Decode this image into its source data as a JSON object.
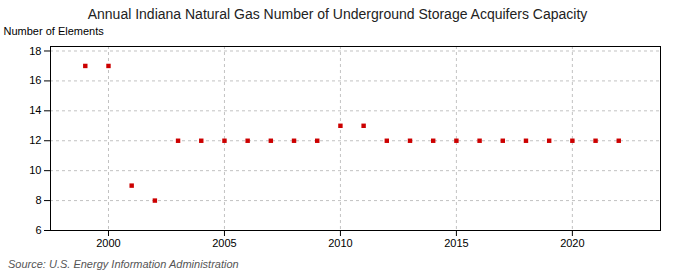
{
  "chart_data": {
    "type": "scatter",
    "title": "Annual Indiana Natural Gas Number of Underground Storage Acquifers Capacity",
    "ylabel": "Number of Elements",
    "source": "Source: U.S. Energy Information Administration",
    "x": [
      1999,
      2000,
      2001,
      2002,
      2003,
      2004,
      2005,
      2006,
      2007,
      2008,
      2009,
      2010,
      2011,
      2012,
      2013,
      2014,
      2015,
      2016,
      2017,
      2018,
      2019,
      2020,
      2021,
      2022
    ],
    "values": [
      17,
      17,
      9,
      8,
      12,
      12,
      12,
      12,
      12,
      12,
      12,
      13,
      13,
      12,
      12,
      12,
      12,
      12,
      12,
      12,
      12,
      12,
      12,
      12
    ],
    "color": "#cc0000",
    "marker": "square",
    "xlim": [
      1997.5,
      2023.8
    ],
    "xticks": [
      2000,
      2005,
      2010,
      2015,
      2020
    ],
    "ylim": [
      6,
      18.3
    ],
    "yticks": [
      6,
      8,
      10,
      12,
      14,
      16,
      18
    ],
    "grid": true
  }
}
